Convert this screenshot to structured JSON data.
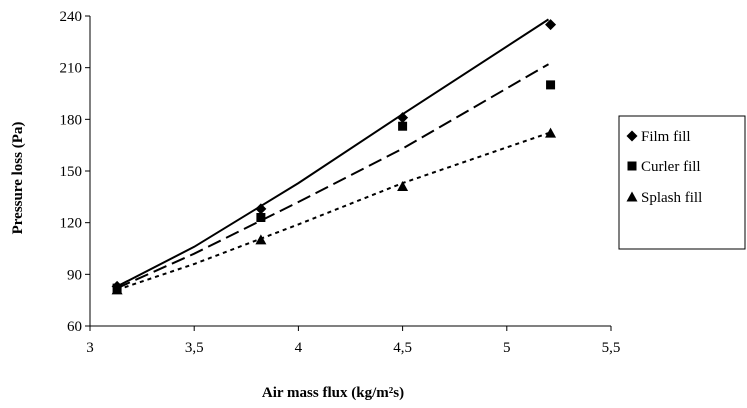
{
  "chart_data": {
    "type": "scatter",
    "title": "",
    "xlabel": "Air mass flux (kg/m²s)",
    "ylabel": "Pressure loss (Pa)",
    "xlim": [
      3,
      5.5
    ],
    "ylim": [
      60,
      240
    ],
    "xticks": [
      3,
      3.5,
      4,
      4.5,
      5,
      5.5
    ],
    "xtick_labels": [
      "3",
      "3,5",
      "4",
      "4,5",
      "5",
      "5,5"
    ],
    "yticks": [
      60,
      90,
      120,
      150,
      180,
      210,
      240
    ],
    "ytick_labels": [
      "60",
      "90",
      "120",
      "150",
      "180",
      "210",
      "240"
    ],
    "grid": false,
    "legend_position": "right",
    "series": [
      {
        "name": "Film fill",
        "marker": "diamond",
        "line_style": "solid",
        "points": [
          [
            3.13,
            83
          ],
          [
            3.82,
            128
          ],
          [
            4.5,
            181
          ],
          [
            5.21,
            235
          ]
        ],
        "trendline": [
          [
            3.13,
            83
          ],
          [
            3.5,
            106
          ],
          [
            4.0,
            143
          ],
          [
            4.5,
            183
          ],
          [
            5.2,
            238
          ]
        ]
      },
      {
        "name": "Curler fill",
        "marker": "square",
        "line_style": "long-dash",
        "points": [
          [
            3.13,
            82
          ],
          [
            3.82,
            123
          ],
          [
            4.5,
            176
          ],
          [
            5.21,
            200
          ]
        ],
        "trendline": [
          [
            3.13,
            82
          ],
          [
            3.5,
            102
          ],
          [
            4.0,
            132
          ],
          [
            4.5,
            163
          ],
          [
            5.2,
            212
          ]
        ]
      },
      {
        "name": "Splash fill",
        "marker": "triangle",
        "line_style": "dotted",
        "points": [
          [
            3.13,
            81
          ],
          [
            3.82,
            110
          ],
          [
            4.5,
            141
          ],
          [
            5.21,
            172
          ]
        ],
        "trendline": [
          [
            3.13,
            81
          ],
          [
            3.5,
            96
          ],
          [
            4.0,
            119
          ],
          [
            4.5,
            143
          ],
          [
            5.2,
            172
          ]
        ]
      }
    ]
  }
}
